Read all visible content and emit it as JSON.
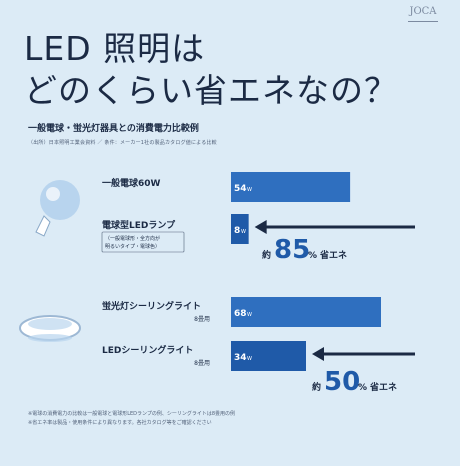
{
  "logo": "JOCA",
  "title_line1": "LED 照明は",
  "title_line2": "どのくらい省エネなの？",
  "subtitle": "一般電球・蛍光灯器具との消費電力比較例",
  "note": "（出所）日本照明工業会資料 ／ 条件：メーカー1社の製品カタログ値による比較",
  "footer_line1": "※電球の消費電力の比較は一般電球と電球形LEDランプの例、シーリングライトは8畳用の例",
  "footer_line2": "※省エネ率は製品・使用条件により異なります。各社カタログ等をご確認ください",
  "colors": {
    "background": "#dcebf6",
    "bar_old": "#2f6fbf",
    "bar_led": "#1f5aa8",
    "arrow": "#1b2a44",
    "text": "#1b2a44"
  },
  "chart_data": {
    "type": "bar",
    "orientation": "horizontal",
    "groups": [
      {
        "icon": "light-bulb-icon",
        "items": [
          {
            "label": "一般電球60W",
            "sublabel": "",
            "value": 54,
            "value_label": "54",
            "unit": "W"
          },
          {
            "label": "電球型LEDランプ",
            "sublabel": "（一般電球形・全方向が明るいタイプ・電球色）",
            "value": 8,
            "value_label": "8",
            "unit": "W"
          }
        ],
        "saving": {
          "prefix": "約",
          "value": "85",
          "suffix": "%",
          "text": "省エネ"
        }
      },
      {
        "icon": "ceiling-light-icon",
        "items": [
          {
            "label": "蛍光灯シーリングライト",
            "sublabel": "8畳用",
            "value": 68,
            "value_label": "68",
            "unit": "W"
          },
          {
            "label": "LEDシーリングライト",
            "sublabel": "8畳用",
            "value": 34,
            "value_label": "34",
            "unit": "W"
          }
        ],
        "saving": {
          "prefix": "約",
          "value": "50",
          "suffix": "%",
          "text": "省エネ"
        }
      }
    ],
    "xlim": [
      0,
      68
    ]
  }
}
